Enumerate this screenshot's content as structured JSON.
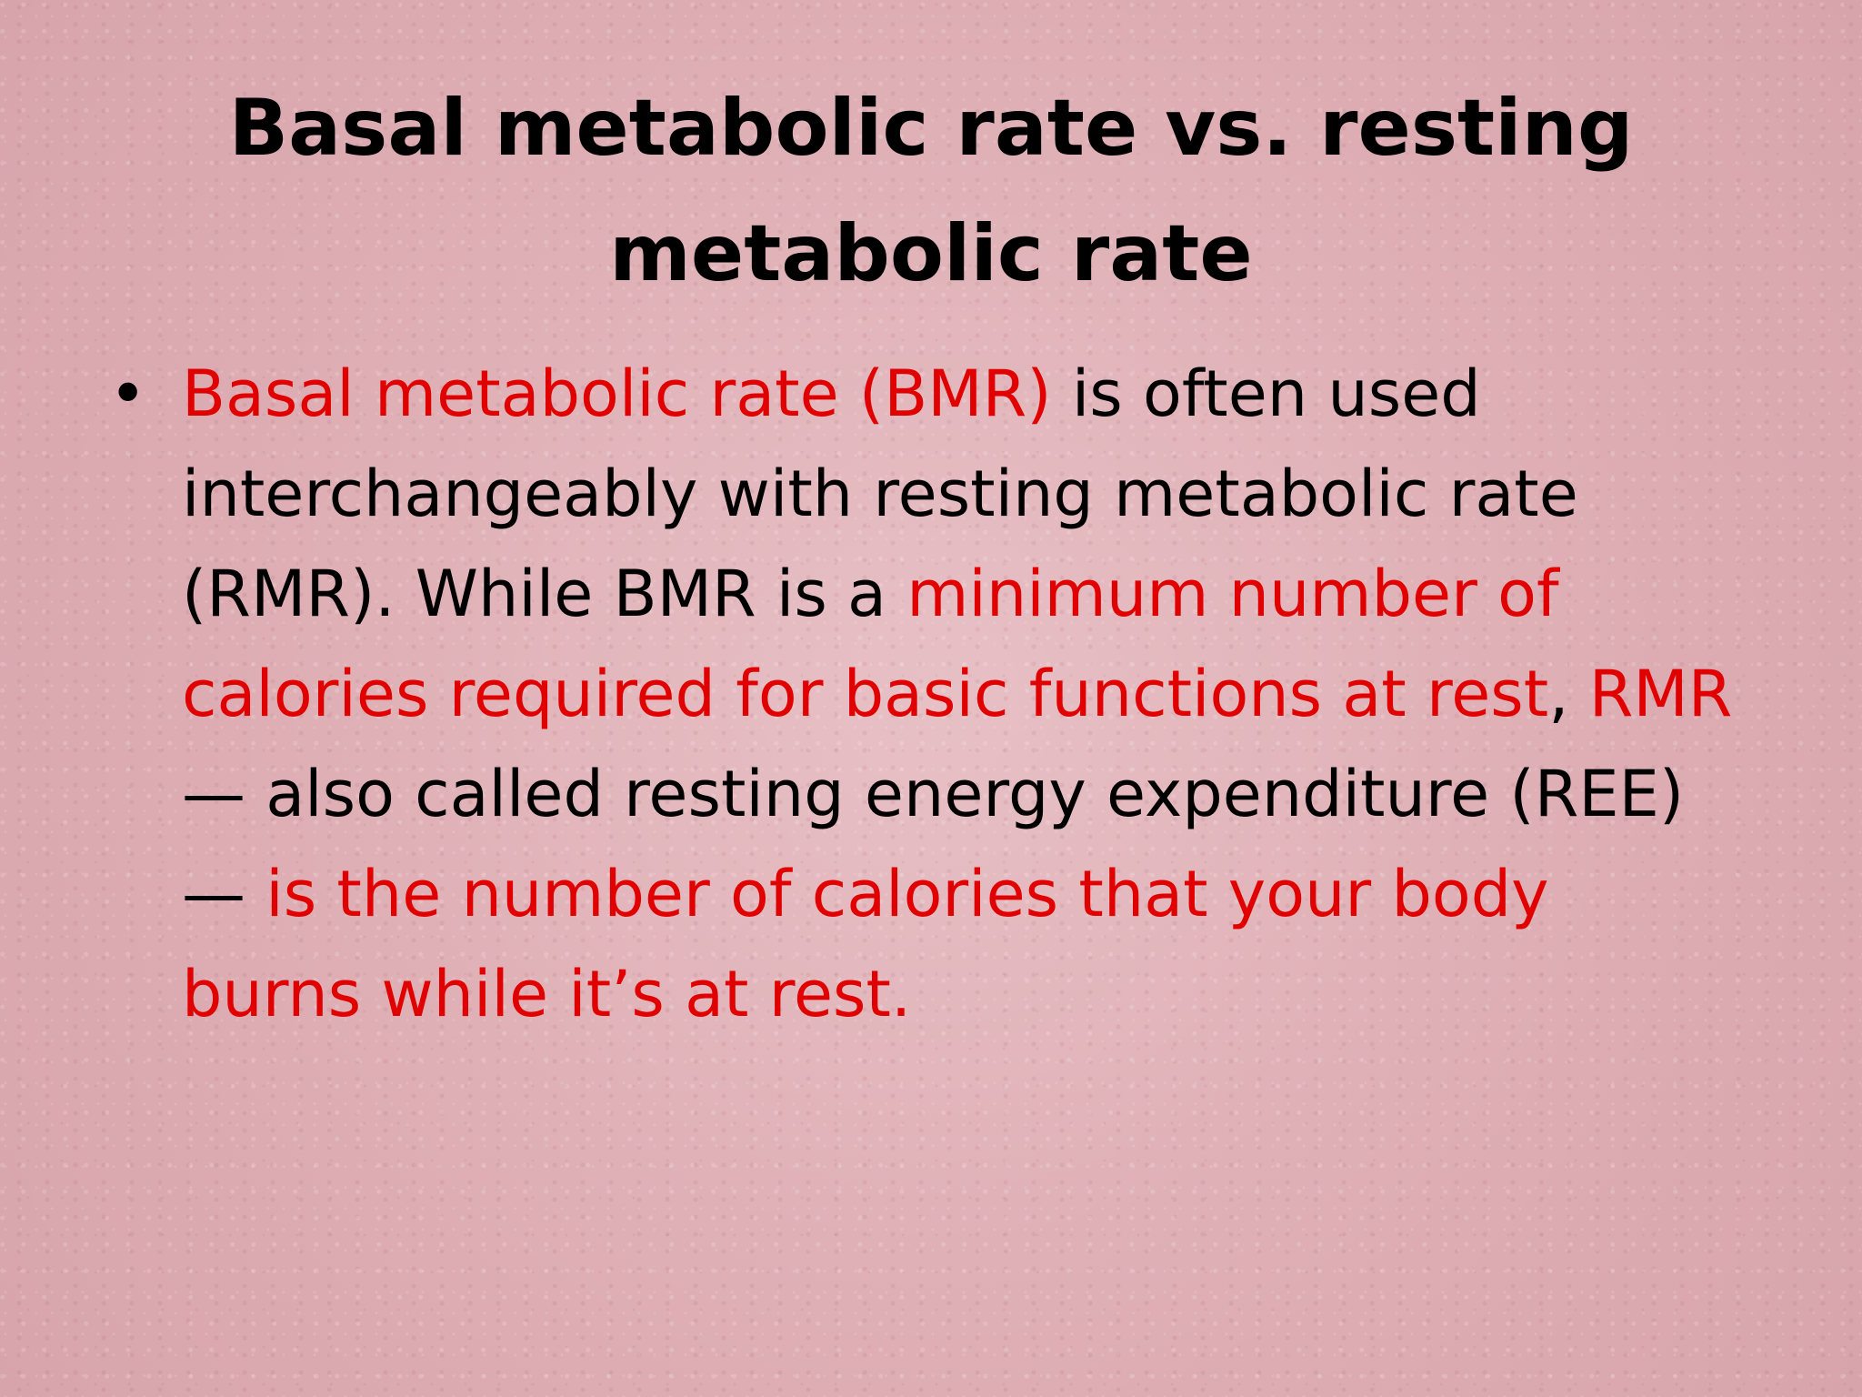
{
  "slide": {
    "title": "Basal metabolic rate vs. resting metabolic rate",
    "bullet_symbol": "•",
    "bullet": {
      "segments": [
        {
          "text": "Basal metabolic rate (BMR)",
          "color": "#e00000"
        },
        {
          "text": " is often used interchangeably with resting metabolic rate (RMR). While BMR is a ",
          "color": "#000000"
        },
        {
          "text": "minimum number of calories required for basic functions at rest",
          "color": "#e00000"
        },
        {
          "text": ", ",
          "color": "#000000"
        },
        {
          "text": "RMR",
          "color": "#e00000"
        },
        {
          "text": " — also called resting energy expenditure (REE) — ",
          "color": "#000000"
        },
        {
          "text": "is the number of calories that your body burns while it’s at rest.",
          "color": "#e00000"
        }
      ]
    }
  },
  "colors": {
    "background": "#e0b2b8",
    "text": "#000000",
    "highlight": "#e00000"
  }
}
